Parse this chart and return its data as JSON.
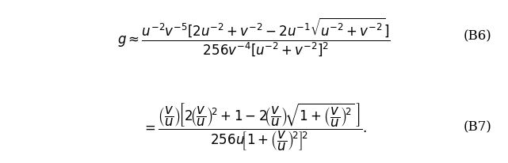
{
  "eq1_label": "B6",
  "eq2_label": "B7",
  "background_color": "#ffffff",
  "text_color": "#000000",
  "fig_width": 6.41,
  "fig_height": 2.07,
  "dpi": 100,
  "eq1": "g \\approx \\dfrac{u^{-2}v^{-5}[2u^{-2} + v^{-2} - 2u^{-1}\\sqrt{u^{-2} + v^{-2}}]}{256v^{-4}[u^{-2} + v^{-2}]^2}",
  "eq2": "= \\dfrac{\\left(\\frac{v}{u}\\right)\\left[2\\left(\\frac{v}{u}\\right)^2 + 1 - 2\\left(\\frac{v}{u}\\right)\\sqrt{1 + \\left(\\frac{v}{u}\\right)^2}\\right]}{256u\\left[1 + \\left(\\frac{v}{u}\\right)^2\\right]^2}.",
  "fontsize": 12,
  "label_fontsize": 12
}
